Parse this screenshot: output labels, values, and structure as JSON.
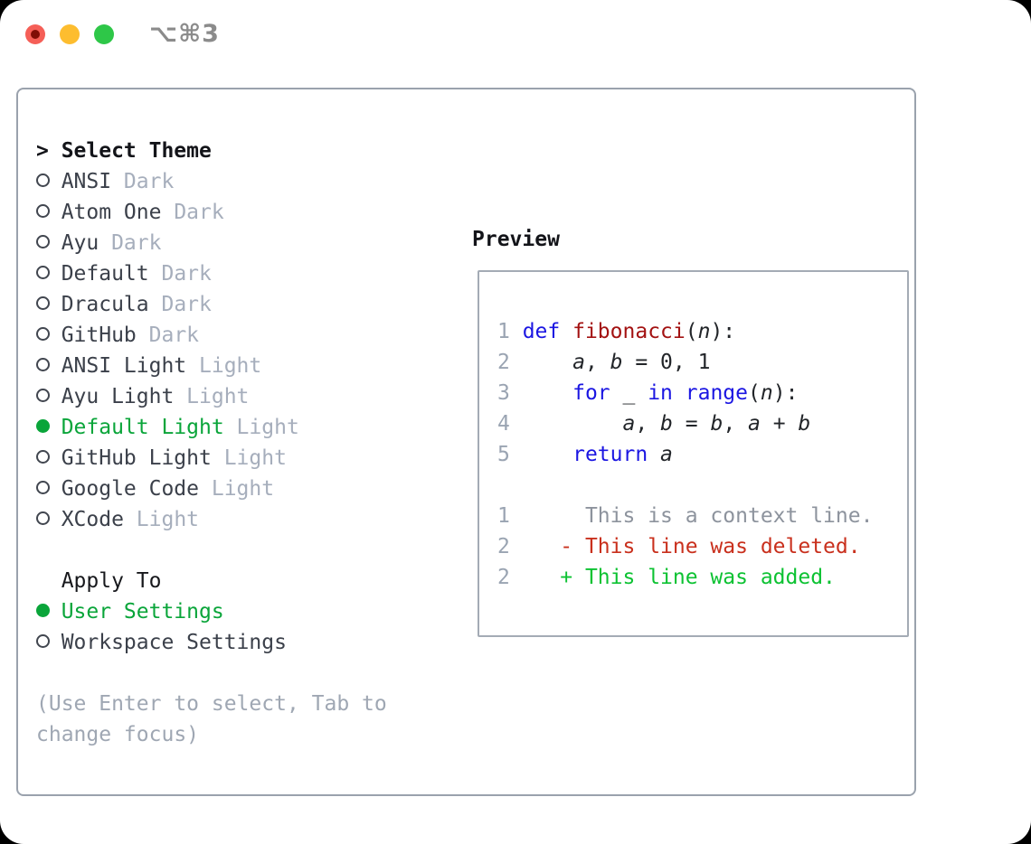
{
  "window": {
    "shortcut_label": "⌥⌘3"
  },
  "colors": {
    "traffic_red": "#f55f57",
    "traffic_red_dot": "#7f0d06",
    "traffic_yellow": "#fdbd2f",
    "traffic_green": "#2ec748",
    "shortcut_gray": "#8b8b8b",
    "panel_border": "#9aa2ad",
    "header_black": "#131419",
    "item_text_dark": "#3b404a",
    "variant_suffix_gray": "#a6aebc",
    "selected_green": "#0aa53a",
    "hint_gray": "#9fa7b3",
    "line_number_gray": "#9aa4b2",
    "keyword_blue": "#1b16e2",
    "function_red": "#a31212",
    "code_plain": "#222529",
    "context_gray": "#8d939d",
    "deleted_red": "#c9301d",
    "added_green": "#0cc232"
  },
  "theme_panel": {
    "header_prefix": ">",
    "header": "Select Theme",
    "items": [
      {
        "name": "ANSI",
        "variant": "Dark",
        "selected": false
      },
      {
        "name": "Atom One",
        "variant": "Dark",
        "selected": false
      },
      {
        "name": "Ayu",
        "variant": "Dark",
        "selected": false
      },
      {
        "name": "Default",
        "variant": "Dark",
        "selected": false
      },
      {
        "name": "Dracula",
        "variant": "Dark",
        "selected": false
      },
      {
        "name": "GitHub",
        "variant": "Dark",
        "selected": false
      },
      {
        "name": "ANSI Light",
        "variant": "Light",
        "selected": false
      },
      {
        "name": "Ayu Light",
        "variant": "Light",
        "selected": false
      },
      {
        "name": "Default Light",
        "variant": "Light",
        "selected": true
      },
      {
        "name": "GitHub Light",
        "variant": "Light",
        "selected": false
      },
      {
        "name": "Google Code",
        "variant": "Light",
        "selected": false
      },
      {
        "name": "XCode",
        "variant": "Light",
        "selected": false
      }
    ],
    "apply_to": {
      "header": "Apply To",
      "options": [
        {
          "name": "User Settings",
          "selected": true
        },
        {
          "name": "Workspace Settings",
          "selected": false
        }
      ]
    },
    "hint": "(Use Enter to select, Tab to change focus)"
  },
  "preview": {
    "title": "Preview",
    "lines": [
      {
        "tokens": [
          {
            "t": "1 ",
            "c": "num"
          },
          {
            "t": "def",
            "c": "kw"
          },
          {
            "t": " ",
            "c": "plain"
          },
          {
            "t": "fibonacci",
            "c": "fn"
          },
          {
            "t": "(",
            "c": "plain"
          },
          {
            "t": "n",
            "c": "var"
          },
          {
            "t": "):",
            "c": "plain"
          }
        ]
      },
      {
        "tokens": [
          {
            "t": "2 ",
            "c": "num"
          },
          {
            "t": "    ",
            "c": "plain"
          },
          {
            "t": "a",
            "c": "var"
          },
          {
            "t": ", ",
            "c": "plain"
          },
          {
            "t": "b",
            "c": "var"
          },
          {
            "t": " = 0, 1",
            "c": "plain"
          }
        ]
      },
      {
        "tokens": [
          {
            "t": "3 ",
            "c": "num"
          },
          {
            "t": "    ",
            "c": "plain"
          },
          {
            "t": "for",
            "c": "kw"
          },
          {
            "t": " _ ",
            "c": "plain"
          },
          {
            "t": "in",
            "c": "kw"
          },
          {
            "t": " ",
            "c": "plain"
          },
          {
            "t": "range",
            "c": "kw"
          },
          {
            "t": "(",
            "c": "plain"
          },
          {
            "t": "n",
            "c": "var"
          },
          {
            "t": "):",
            "c": "plain"
          }
        ]
      },
      {
        "tokens": [
          {
            "t": "4 ",
            "c": "num"
          },
          {
            "t": "        ",
            "c": "plain"
          },
          {
            "t": "a",
            "c": "var"
          },
          {
            "t": ", ",
            "c": "plain"
          },
          {
            "t": "b",
            "c": "var"
          },
          {
            "t": " = ",
            "c": "plain"
          },
          {
            "t": "b",
            "c": "var"
          },
          {
            "t": ", ",
            "c": "plain"
          },
          {
            "t": "a",
            "c": "var"
          },
          {
            "t": " + ",
            "c": "plain"
          },
          {
            "t": "b",
            "c": "var"
          }
        ]
      },
      {
        "tokens": [
          {
            "t": "5 ",
            "c": "num"
          },
          {
            "t": "    ",
            "c": "plain"
          },
          {
            "t": "return",
            "c": "kw"
          },
          {
            "t": " ",
            "c": "plain"
          },
          {
            "t": "a",
            "c": "var"
          }
        ]
      },
      {
        "tokens": []
      },
      {
        "tokens": [
          {
            "t": "1    ",
            "c": "num"
          },
          {
            "t": "  ",
            "c": "ctx"
          },
          {
            "t": "This is a context line.",
            "c": "ctx"
          }
        ]
      },
      {
        "tokens": [
          {
            "t": "2    ",
            "c": "num"
          },
          {
            "t": "- ",
            "c": "del"
          },
          {
            "t": "This line was deleted.",
            "c": "del"
          }
        ]
      },
      {
        "tokens": [
          {
            "t": "2    ",
            "c": "num"
          },
          {
            "t": "+ ",
            "c": "add"
          },
          {
            "t": "This line was added.",
            "c": "add"
          }
        ]
      }
    ]
  }
}
